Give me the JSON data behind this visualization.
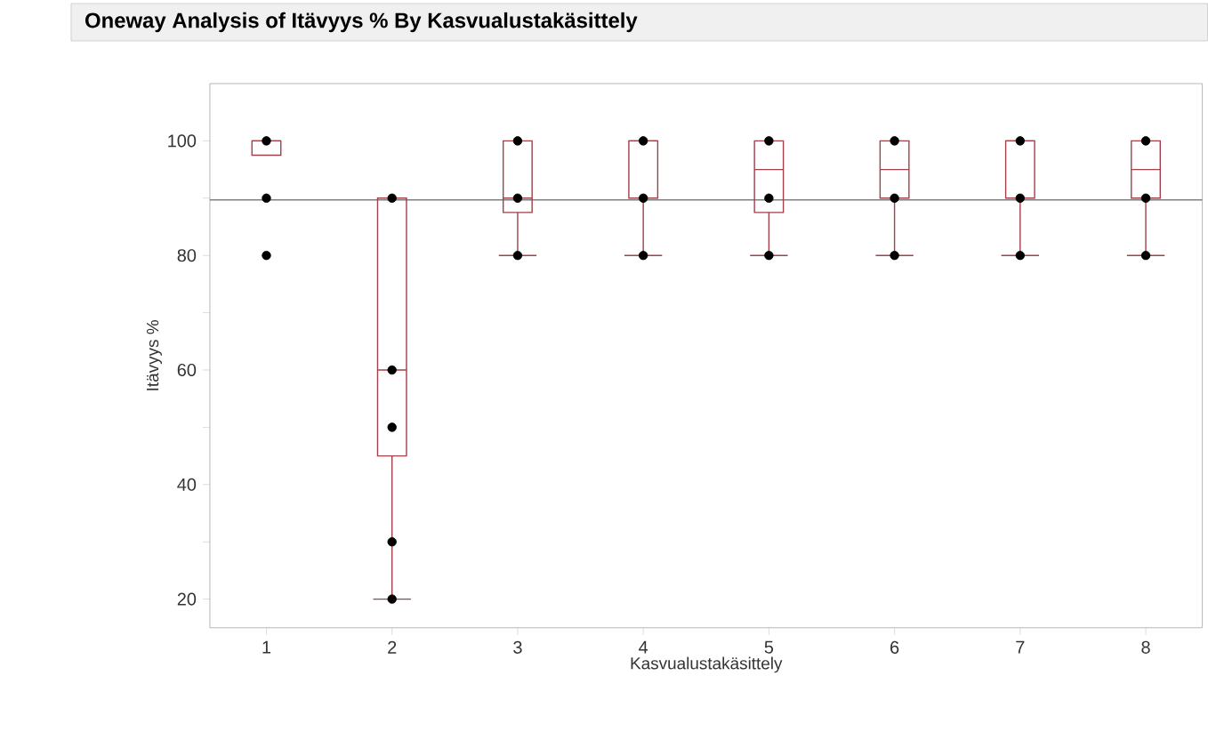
{
  "chart_data": {
    "type": "box",
    "title": "Oneway Analysis of Itävyys % By Kasvualustakäsittely",
    "xlabel": "Kasvualustakäsittely",
    "ylabel": "Itävyys %",
    "categories": [
      "1",
      "2",
      "3",
      "4",
      "5",
      "6",
      "7",
      "8"
    ],
    "ylim": [
      15,
      110
    ],
    "yticks": [
      20,
      {
        "value": 30,
        "label": null
      },
      40,
      {
        "value": 50,
        "label": null
      },
      60,
      {
        "value": 70,
        "label": null
      },
      80,
      {
        "value": 90,
        "label": null
      },
      100
    ],
    "series": [
      {
        "color": "#a0404a",
        "boxes": [
          {
            "low": 97.5,
            "q1": 97.5,
            "median": 100,
            "q3": 100,
            "high": 100
          },
          {
            "low": 20,
            "q1": 45,
            "median": 60,
            "q3": 90,
            "high": 90
          },
          {
            "low": 80,
            "q1": 87.5,
            "median": 90,
            "q3": 100,
            "high": 100
          },
          {
            "low": 80,
            "q1": 90,
            "median": 100,
            "q3": 100,
            "high": 100
          },
          {
            "low": 80,
            "q1": 87.5,
            "median": 95,
            "q3": 100,
            "high": 100
          },
          {
            "low": 80,
            "q1": 90,
            "median": 95,
            "q3": 100,
            "high": 100
          },
          {
            "low": 80,
            "q1": 90,
            "median": 100,
            "q3": 100,
            "high": 100
          },
          {
            "low": 80,
            "q1": 90,
            "median": 95,
            "q3": 100,
            "high": 100
          }
        ]
      },
      {
        "type": "scatter",
        "color": "#000000",
        "marker": "circle",
        "x": [
          "1",
          "1",
          "1",
          "2",
          "2",
          "2",
          "2",
          "2",
          "3",
          "3",
          "3",
          "4",
          "4",
          "4",
          "5",
          "5",
          "5",
          "6",
          "6",
          "6",
          "7",
          "7",
          "7",
          "8",
          "8",
          "8"
        ],
        "values": [
          100,
          90,
          80,
          90,
          60,
          50,
          30,
          20,
          100,
          90,
          80,
          100,
          90,
          80,
          100,
          90,
          80,
          100,
          90,
          80,
          100,
          90,
          80,
          100,
          90,
          80
        ]
      }
    ],
    "ref_lines": [
      {
        "axis": "y",
        "value": 89.7,
        "color": "#808080"
      }
    ],
    "grid": false
  }
}
